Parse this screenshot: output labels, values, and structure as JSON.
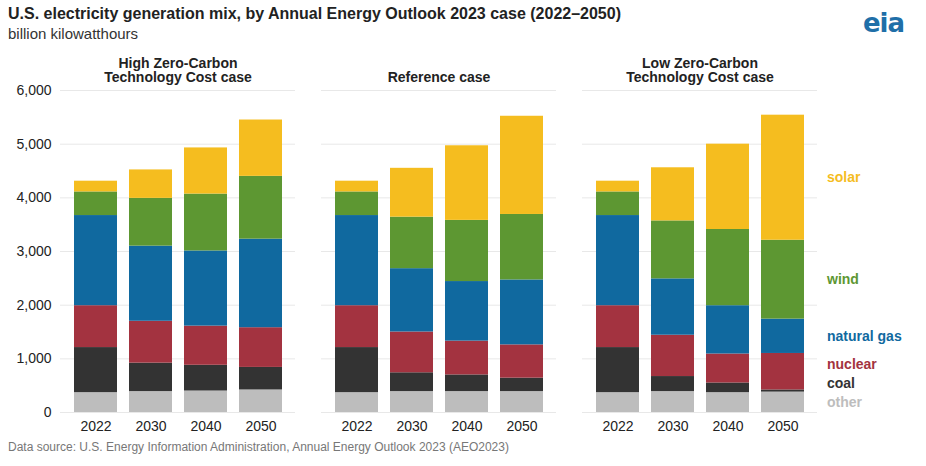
{
  "chart_data": {
    "type": "bar",
    "stacked": true,
    "grid": true,
    "title": "U.S. electricity generation mix, by Annual Energy Outlook 2023 case (2022–2050)",
    "subtitle": "billion kilowatthours",
    "logo": "eia",
    "caption": "Data source: U.S. Energy Information Administration, Annual Energy Outlook 2023 (AEO2023)",
    "legend": "right",
    "panels": [
      "High Zero-Carbon Technology Cost case",
      "Reference case",
      "Low Zero-Carbon Technology Cost case"
    ],
    "categories": [
      "2022",
      "2030",
      "2040",
      "2050"
    ],
    "ylim": [
      0,
      6000
    ],
    "yticks": [
      0,
      {
        "value": 1000,
        "label": "1,000"
      },
      {
        "value": 2000,
        "label": "2,000"
      },
      {
        "value": 3000,
        "label": "3,000"
      },
      {
        "value": 4000,
        "label": "4,000"
      },
      {
        "value": 5000,
        "label": "5,000"
      },
      {
        "value": 6000,
        "label": "6,000"
      }
    ],
    "series": [
      {
        "name": "other",
        "color": "#bdbdbd",
        "values": [
          [
            370,
            390,
            400,
            420
          ],
          [
            370,
            390,
            390,
            390
          ],
          [
            370,
            390,
            370,
            380
          ]
        ]
      },
      {
        "name": "coal",
        "color": "#333333",
        "values": [
          [
            840,
            530,
            480,
            420
          ],
          [
            840,
            350,
            310,
            250
          ],
          [
            840,
            280,
            180,
            40
          ]
        ]
      },
      {
        "name": "nuclear",
        "color": "#a33340",
        "values": [
          [
            780,
            780,
            730,
            740
          ],
          [
            780,
            760,
            630,
            620
          ],
          [
            780,
            770,
            540,
            680
          ]
        ]
      },
      {
        "name": "natural gas",
        "color": "#10699f",
        "values": [
          [
            1680,
            1400,
            1400,
            1650
          ],
          [
            1680,
            1180,
            1110,
            1210
          ],
          [
            1680,
            1050,
            900,
            640
          ]
        ]
      },
      {
        "name": "wind",
        "color": "#5d9732",
        "values": [
          [
            440,
            890,
            1060,
            1170
          ],
          [
            440,
            960,
            1140,
            1220
          ],
          [
            440,
            1080,
            1420,
            1470
          ]
        ]
      },
      {
        "name": "solar",
        "color": "#f5bd1f",
        "values": [
          [
            200,
            530,
            860,
            1050
          ],
          [
            200,
            910,
            1390,
            1830
          ],
          [
            200,
            990,
            1590,
            2330
          ]
        ]
      }
    ]
  }
}
